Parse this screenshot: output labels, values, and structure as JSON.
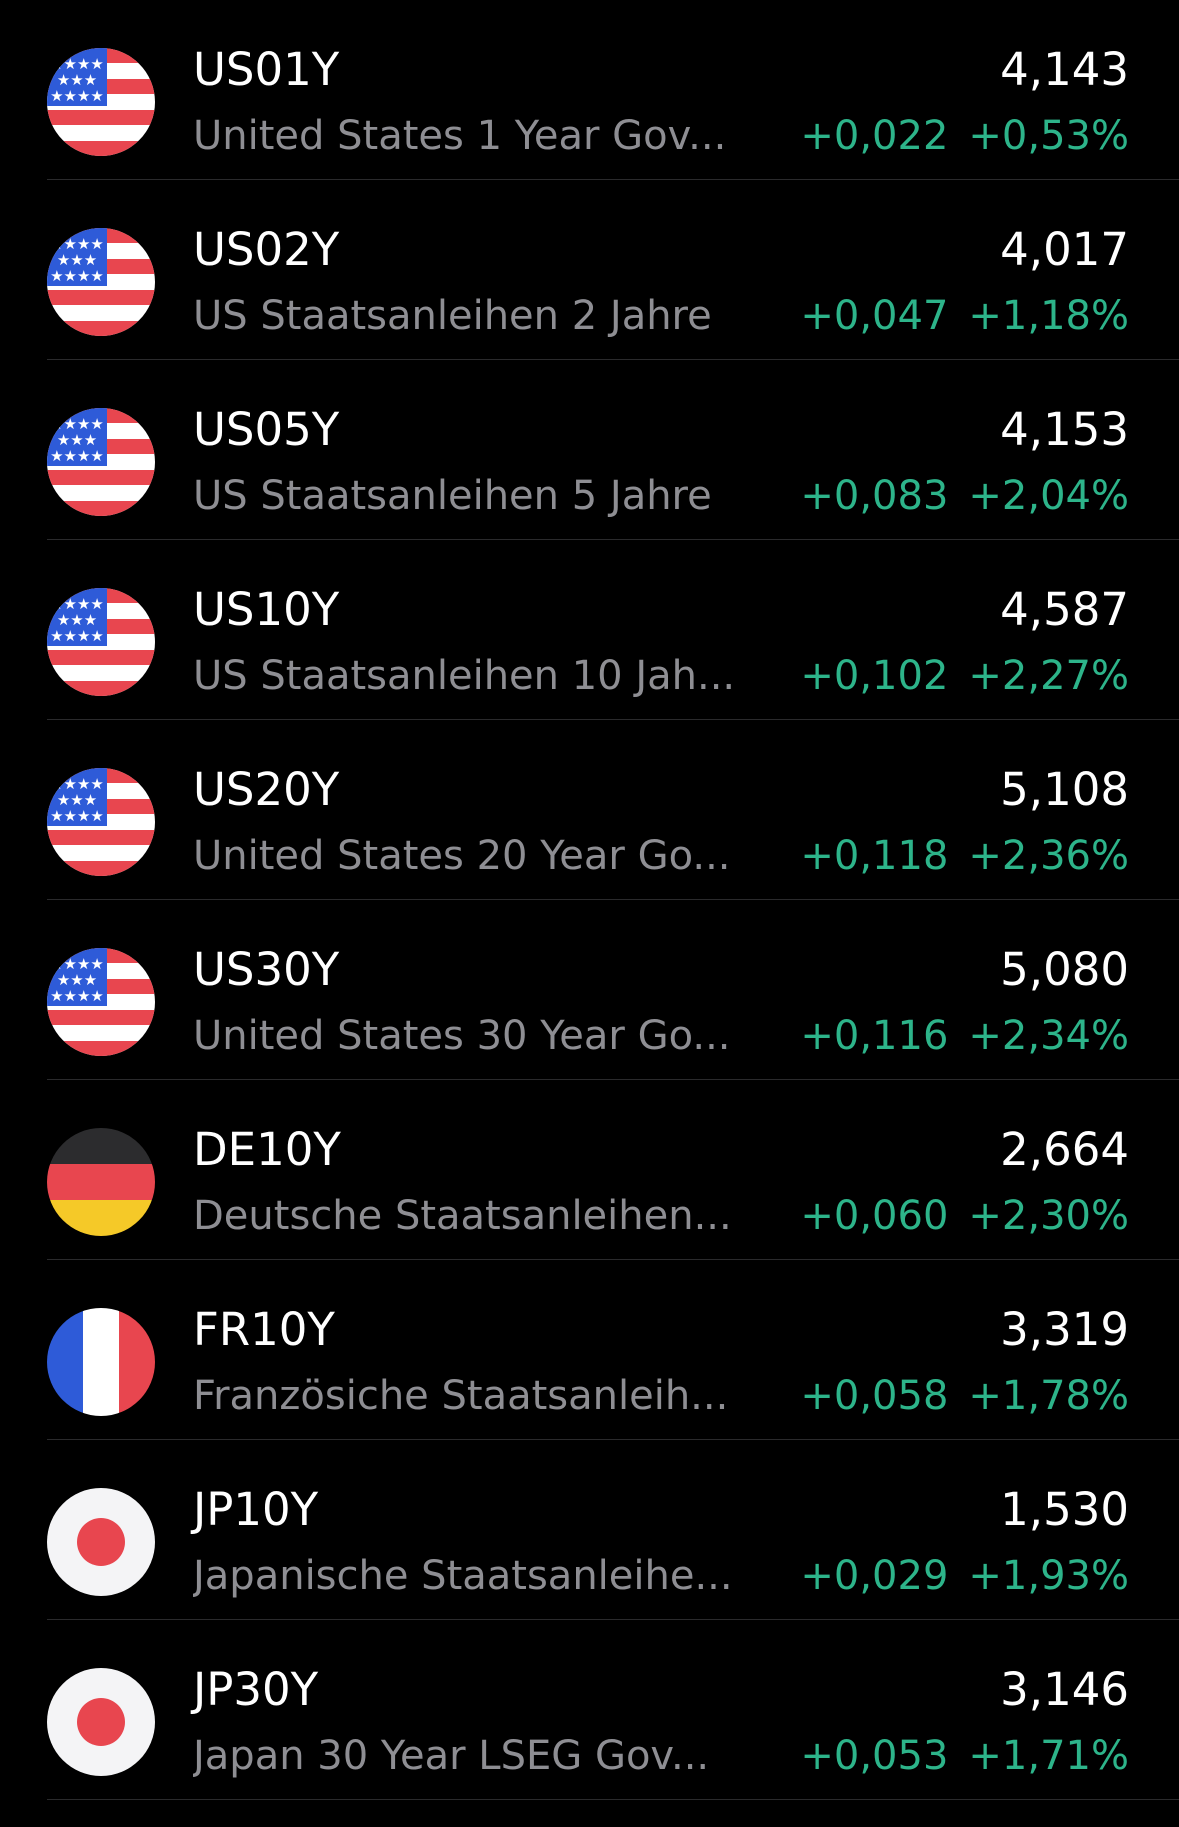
{
  "colors": {
    "background": "#000000",
    "symbol": "#ffffff",
    "name": "#8e8e93",
    "positive": "#2db48a",
    "separator": "#2a2a2c"
  },
  "rows": [
    {
      "flag": "us-flag-icon",
      "symbol": "US01Y",
      "name": "United States 1 Year Gov...",
      "price": "4,143",
      "change": "+0,022",
      "pct": "+0,53%"
    },
    {
      "flag": "us-flag-icon",
      "symbol": "US02Y",
      "name": "US Staatsanleihen 2 Jahre",
      "price": "4,017",
      "change": "+0,047",
      "pct": "+1,18%"
    },
    {
      "flag": "us-flag-icon",
      "symbol": "US05Y",
      "name": "US Staatsanleihen 5 Jahre",
      "price": "4,153",
      "change": "+0,083",
      "pct": "+2,04%"
    },
    {
      "flag": "us-flag-icon",
      "symbol": "US10Y",
      "name": "US Staatsanleihen 10 Jah...",
      "price": "4,587",
      "change": "+0,102",
      "pct": "+2,27%"
    },
    {
      "flag": "us-flag-icon",
      "symbol": "US20Y",
      "name": "United States 20 Year Go...",
      "price": "5,108",
      "change": "+0,118",
      "pct": "+2,36%"
    },
    {
      "flag": "us-flag-icon",
      "symbol": "US30Y",
      "name": "United States 30 Year Go...",
      "price": "5,080",
      "change": "+0,116",
      "pct": "+2,34%"
    },
    {
      "flag": "de-flag-icon",
      "symbol": "DE10Y",
      "name": "Deutsche Staatsanleihen...",
      "price": "2,664",
      "change": "+0,060",
      "pct": "+2,30%"
    },
    {
      "flag": "fr-flag-icon",
      "symbol": "FR10Y",
      "name": "Französiche Staatsanleih...",
      "price": "3,319",
      "change": "+0,058",
      "pct": "+1,78%"
    },
    {
      "flag": "jp-flag-icon",
      "symbol": "JP10Y",
      "name": "Japanische Staatsanleihe...",
      "price": "1,530",
      "change": "+0,029",
      "pct": "+1,93%"
    },
    {
      "flag": "jp-flag-icon",
      "symbol": "JP30Y",
      "name": "Japan 30 Year LSEG Gov...",
      "price": "3,146",
      "change": "+0,053",
      "pct": "+1,71%"
    }
  ]
}
